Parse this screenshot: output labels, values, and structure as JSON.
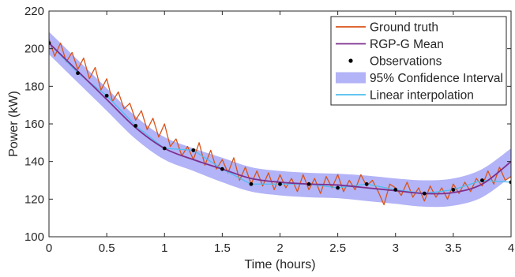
{
  "chart_data": {
    "type": "line",
    "title": "",
    "xlabel": "Time (hours)",
    "ylabel": "Power (kW)",
    "xlim": [
      0,
      4
    ],
    "ylim": [
      100,
      220
    ],
    "xticks": [
      0,
      0.5,
      1,
      1.5,
      2,
      2.5,
      3,
      3.5,
      4
    ],
    "xtick_labels": [
      "0",
      "0.5",
      "1",
      "1.5",
      "2",
      "2.5",
      "3",
      "3.5",
      "4"
    ],
    "yticks": [
      100,
      120,
      140,
      160,
      180,
      200,
      220
    ],
    "ytick_labels": [
      "100",
      "120",
      "140",
      "160",
      "180",
      "200",
      "220"
    ],
    "grid": false,
    "legend_position": "top-right",
    "legend": [
      {
        "key": "ground_truth",
        "label": "Ground truth",
        "symbol": "line",
        "color": "#D95319"
      },
      {
        "key": "mean",
        "label": "RGP-G Mean",
        "symbol": "line",
        "color": "#7E2F8E"
      },
      {
        "key": "observations",
        "label": "Observations",
        "symbol": "dot",
        "color": "#000000"
      },
      {
        "key": "ci",
        "label": "95% Confidence Interval",
        "symbol": "patch",
        "color": "#B3B3F7"
      },
      {
        "key": "interp",
        "label": "Linear interpolation",
        "symbol": "line",
        "color": "#4DBEEE"
      }
    ],
    "series": [
      {
        "name": "Ground truth",
        "color": "#D95319",
        "x": [
          0,
          0.05,
          0.1,
          0.15,
          0.2,
          0.25,
          0.3,
          0.35,
          0.4,
          0.45,
          0.5,
          0.55,
          0.6,
          0.65,
          0.7,
          0.75,
          0.8,
          0.85,
          0.9,
          0.95,
          1,
          1.05,
          1.1,
          1.15,
          1.2,
          1.25,
          1.3,
          1.35,
          1.4,
          1.45,
          1.5,
          1.55,
          1.6,
          1.65,
          1.7,
          1.75,
          1.8,
          1.85,
          1.9,
          1.95,
          2,
          2.05,
          2.1,
          2.15,
          2.2,
          2.25,
          2.3,
          2.35,
          2.4,
          2.45,
          2.5,
          2.55,
          2.6,
          2.65,
          2.7,
          2.75,
          2.8,
          2.85,
          2.9,
          2.95,
          3,
          3.05,
          3.1,
          3.15,
          3.2,
          3.25,
          3.3,
          3.35,
          3.4,
          3.45,
          3.5,
          3.55,
          3.6,
          3.65,
          3.7,
          3.75,
          3.8,
          3.85,
          3.9,
          3.95,
          4
        ],
        "y": [
          205,
          196,
          203,
          193,
          198,
          189,
          195,
          184,
          190,
          178,
          184,
          172,
          177,
          168,
          171,
          162,
          167,
          157,
          163,
          153,
          160,
          148,
          152,
          143,
          148,
          141,
          150,
          138,
          146,
          136,
          141,
          134,
          142,
          130,
          137,
          128,
          135,
          127,
          134,
          125,
          133,
          126,
          131,
          124,
          133,
          125,
          131,
          123,
          132,
          126,
          133,
          124,
          130,
          125,
          133,
          127,
          130,
          124,
          117,
          128,
          126,
          122,
          129,
          121,
          126,
          119,
          127,
          121,
          126,
          120,
          128,
          123,
          129,
          124,
          131,
          127,
          135,
          128,
          137,
          130,
          132
        ]
      },
      {
        "name": "Linear interpolation",
        "color": "#4DBEEE",
        "x": [
          0,
          0.25,
          0.5,
          0.75,
          1,
          1.25,
          1.5,
          1.75,
          2,
          2.25,
          2.5,
          2.75,
          3,
          3.25,
          3.5,
          3.75,
          4
        ],
        "y": [
          203,
          187,
          175,
          159,
          147,
          146,
          136,
          128,
          128,
          128,
          126,
          128,
          125,
          123,
          125,
          130,
          129
        ]
      },
      {
        "name": "RGP-G Mean",
        "color": "#7E2F8E",
        "x": [
          0,
          0.25,
          0.5,
          0.75,
          1,
          1.25,
          1.5,
          1.75,
          2,
          2.25,
          2.5,
          2.75,
          3,
          3.25,
          3.5,
          3.75,
          4
        ],
        "y": [
          203,
          188,
          173,
          158,
          147,
          141,
          136,
          131,
          129,
          128,
          127.5,
          126,
          124.5,
          123,
          123.5,
          128,
          140
        ]
      }
    ],
    "confidence_interval": {
      "name": "95% Confidence Interval",
      "color": "#B3B3F7",
      "x": [
        0,
        0.25,
        0.5,
        0.75,
        1,
        1.25,
        1.5,
        1.75,
        2,
        2.25,
        2.5,
        2.75,
        3,
        3.25,
        3.5,
        3.75,
        4
      ],
      "lower": [
        197,
        182,
        167,
        152,
        141,
        135,
        129,
        124,
        122,
        121,
        120.5,
        119,
        117.5,
        116,
        116.5,
        121,
        132
      ],
      "upper": [
        209,
        194,
        179,
        164,
        153,
        147,
        142,
        137,
        135,
        134,
        133.5,
        132.5,
        131,
        130,
        131,
        136,
        147
      ]
    },
    "observations": {
      "name": "Observations",
      "color": "#000000",
      "x": [
        0,
        0.25,
        0.5,
        0.75,
        1,
        1.25,
        1.5,
        1.75,
        2,
        2.25,
        2.5,
        2.75,
        3,
        3.25,
        3.5,
        3.75,
        4
      ],
      "y": [
        203,
        187,
        175,
        159,
        147,
        146,
        136,
        128,
        128,
        128,
        126,
        128,
        125,
        123,
        125,
        130,
        129
      ]
    }
  }
}
